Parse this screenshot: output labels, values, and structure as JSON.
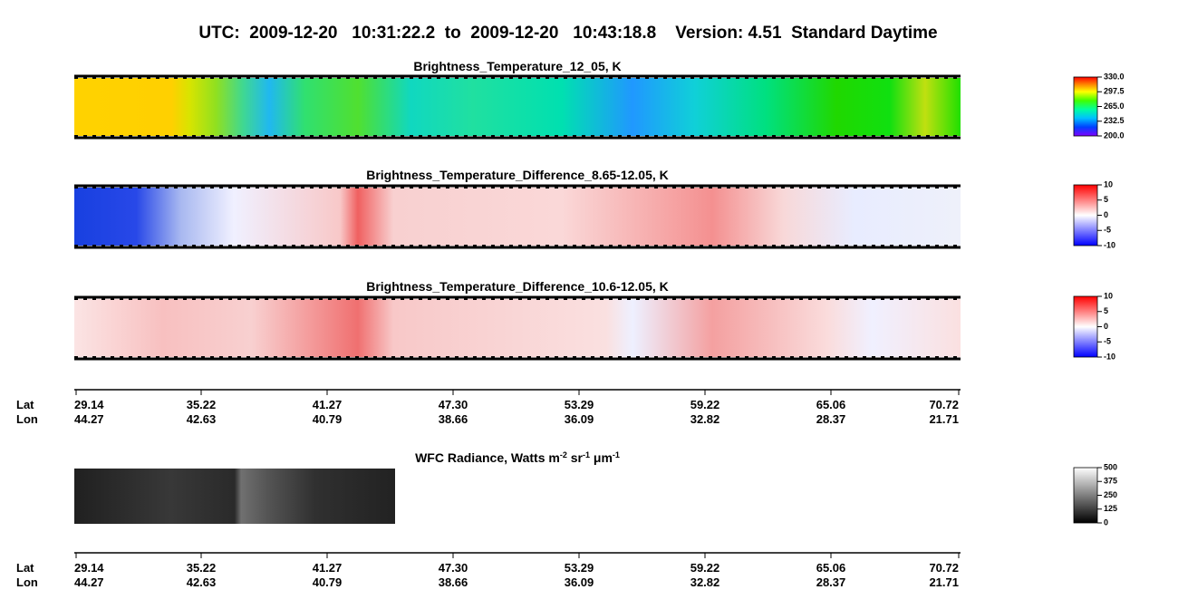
{
  "title": "UTC:  2009-12-20   10:31:22.2  to  2009-12-20   10:43:18.8    Version: 4.51  Standard Daytime",
  "panels": [
    {
      "title": "Brightness_Temperature_12_05, K",
      "colorbar": {
        "lim": [
          200,
          330
        ],
        "ticks": [
          {
            "value": 330,
            "label": "330.0"
          },
          {
            "value": 297.5,
            "label": "297.5"
          },
          {
            "value": 265,
            "label": "265.0"
          },
          {
            "value": 232.5,
            "label": "232.5"
          },
          {
            "value": 200,
            "label": "200.0"
          }
        ]
      }
    },
    {
      "title": "Brightness_Temperature_Difference_8.65-12.05, K",
      "colorbar": {
        "lim": [
          -10,
          10
        ],
        "ticks": [
          10,
          5,
          0,
          -5,
          -10
        ]
      }
    },
    {
      "title": "Brightness_Temperature_Difference_10.6-12.05, K",
      "colorbar": {
        "lim": [
          -10,
          10
        ],
        "ticks": [
          10,
          5,
          0,
          -5,
          -10
        ]
      }
    },
    {
      "title_parts": [
        "WFC Radiance, Watts m",
        "-2",
        " sr",
        "-1",
        " μm",
        "-1"
      ],
      "colorbar": {
        "lim": [
          0,
          500
        ],
        "ticks": [
          500,
          375,
          250,
          125,
          0
        ]
      }
    }
  ],
  "axes": [
    {
      "lat_label": "Lat",
      "lon_label": "Lon",
      "lat": [
        "29.14",
        "35.22",
        "41.27",
        "47.30",
        "53.29",
        "59.22",
        "65.06",
        "70.72"
      ],
      "lon": [
        "44.27",
        "42.63",
        "40.79",
        "38.66",
        "36.09",
        "32.82",
        "28.37",
        "21.71"
      ]
    },
    {
      "lat_label": "Lat",
      "lon_label": "Lon",
      "lat": [
        "29.14",
        "35.22",
        "41.27",
        "47.30",
        "53.29",
        "59.22",
        "65.06",
        "70.72"
      ],
      "lon": [
        "44.27",
        "42.63",
        "40.79",
        "38.66",
        "36.09",
        "32.82",
        "28.37",
        "21.71"
      ]
    }
  ]
}
